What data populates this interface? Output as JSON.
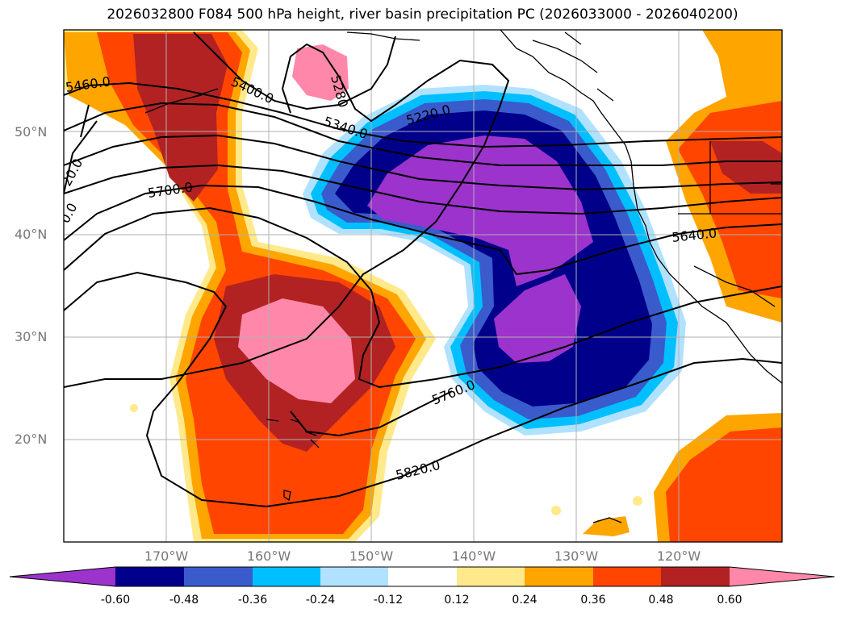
{
  "title": "2026032800 F084 500 hPa height, river basin precipitation PC (2026033000 - 2026040200)",
  "latitude_labels": [
    "50°N",
    "40°N",
    "30°N",
    "20°N"
  ],
  "longitude_labels": [
    "170°W",
    "160°W",
    "150°W",
    "140°W",
    "130°W",
    "120°W"
  ],
  "contour_labels": [
    "5460.0",
    "5400.0",
    "5280",
    "5220.0",
    "5340.0",
    "5700.0",
    "5640.0",
    "5760.0",
    "5820.0",
    "20.0",
    "0.0"
  ],
  "colorbar": {
    "tick_labels": [
      "-0.60",
      "-0.48",
      "-0.36",
      "-0.24",
      "-0.12",
      "0.12",
      "0.24",
      "0.36",
      "0.48",
      "0.60"
    ],
    "colors": [
      "#9b33cc",
      "#00008b",
      "#3a5bcc",
      "#00bfff",
      "#b0e2ff",
      "#ffffff",
      "#ffe98a",
      "#ffa500",
      "#ff4500",
      "#b22222",
      "#ff88aa"
    ]
  },
  "colors": {
    "gridline": "#b0b0b0",
    "coastline": "#000000",
    "contour": "#000000"
  }
}
